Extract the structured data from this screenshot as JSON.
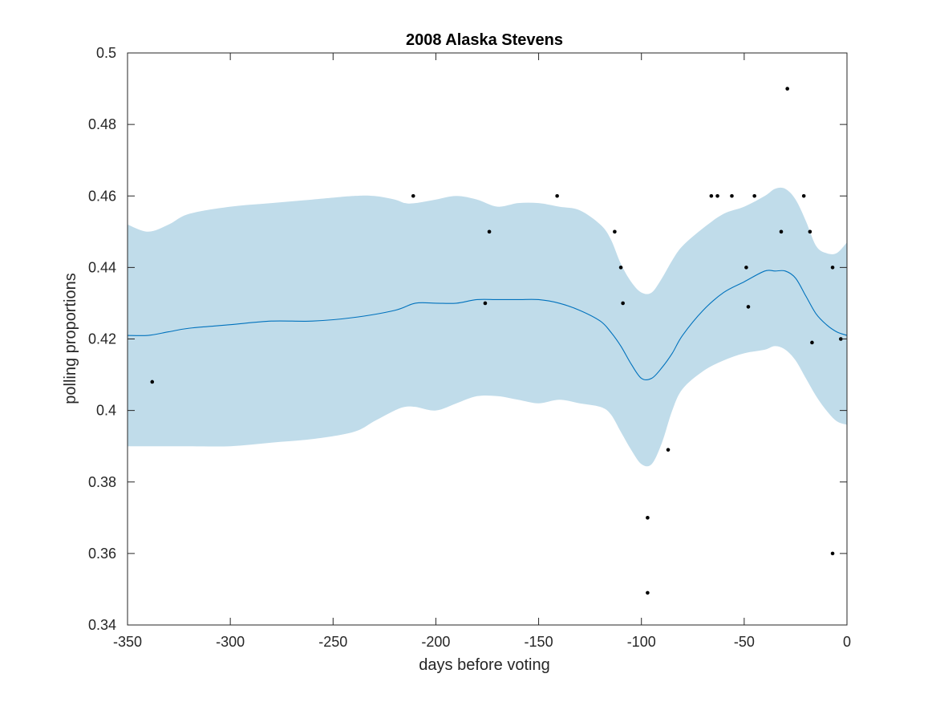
{
  "chart_data": {
    "type": "line",
    "title": "2008 Alaska Stevens",
    "xlabel": "days before voting",
    "ylabel": "polling proportions",
    "xlim": [
      -350,
      0
    ],
    "ylim": [
      0.34,
      0.5
    ],
    "xticks": [
      -350,
      -300,
      -250,
      -200,
      -150,
      -100,
      -50,
      0
    ],
    "xtick_labels": [
      "-350",
      "-300",
      "-250",
      "-200",
      "-150",
      "-100",
      "-50",
      "0"
    ],
    "yticks": [
      0.34,
      0.36,
      0.38,
      0.4,
      0.42,
      0.44,
      0.46,
      0.48,
      0.5
    ],
    "ytick_labels": [
      "0.34",
      "0.36",
      "0.38",
      "0.4",
      "0.42",
      "0.44",
      "0.46",
      "0.48",
      "0.5"
    ],
    "grid": false,
    "colors": {
      "band": "#c0dcea",
      "mean": "#0072bd",
      "points": "#000000",
      "axes": "#262626"
    },
    "series": [
      {
        "type": "band",
        "x": [
          -350,
          -340,
          -330,
          -320,
          -300,
          -280,
          -260,
          -240,
          -230,
          -220,
          -215,
          -210,
          -200,
          -190,
          -180,
          -170,
          -160,
          -150,
          -140,
          -130,
          -120,
          -115,
          -110,
          -105,
          -100,
          -95,
          -90,
          -85,
          -80,
          -70,
          -60,
          -50,
          -40,
          -35,
          -30,
          -25,
          -20,
          -15,
          -10,
          -5,
          0
        ],
        "upper": [
          0.452,
          0.45,
          0.452,
          0.455,
          0.457,
          0.458,
          0.459,
          0.46,
          0.46,
          0.459,
          0.458,
          0.458,
          0.459,
          0.46,
          0.459,
          0.457,
          0.458,
          0.458,
          0.457,
          0.456,
          0.452,
          0.448,
          0.441,
          0.436,
          0.433,
          0.433,
          0.437,
          0.442,
          0.446,
          0.451,
          0.455,
          0.457,
          0.46,
          0.462,
          0.462,
          0.459,
          0.453,
          0.446,
          0.444,
          0.444,
          0.447
        ],
        "lower": [
          0.39,
          0.39,
          0.39,
          0.39,
          0.39,
          0.391,
          0.392,
          0.394,
          0.397,
          0.4,
          0.401,
          0.401,
          0.4,
          0.402,
          0.404,
          0.404,
          0.403,
          0.402,
          0.403,
          0.402,
          0.401,
          0.399,
          0.394,
          0.389,
          0.385,
          0.385,
          0.391,
          0.4,
          0.406,
          0.411,
          0.414,
          0.416,
          0.417,
          0.418,
          0.417,
          0.414,
          0.409,
          0.404,
          0.4,
          0.397,
          0.396
        ]
      },
      {
        "type": "line",
        "x": [
          -350,
          -340,
          -330,
          -320,
          -300,
          -280,
          -260,
          -240,
          -220,
          -210,
          -200,
          -190,
          -180,
          -170,
          -160,
          -150,
          -140,
          -130,
          -120,
          -115,
          -110,
          -105,
          -100,
          -95,
          -90,
          -85,
          -80,
          -70,
          -60,
          -50,
          -40,
          -35,
          -30,
          -25,
          -20,
          -15,
          -10,
          -5,
          0
        ],
        "y": [
          0.421,
          0.421,
          0.422,
          0.423,
          0.424,
          0.425,
          0.425,
          0.426,
          0.428,
          0.43,
          0.43,
          0.43,
          0.431,
          0.431,
          0.431,
          0.431,
          0.43,
          0.428,
          0.425,
          0.422,
          0.418,
          0.413,
          0.409,
          0.409,
          0.412,
          0.416,
          0.421,
          0.428,
          0.433,
          0.436,
          0.439,
          0.439,
          0.439,
          0.437,
          0.432,
          0.427,
          0.424,
          0.422,
          0.421
        ]
      },
      {
        "type": "scatter",
        "x": [
          -338,
          -211,
          -176,
          -174,
          -141,
          -113,
          -110,
          -109,
          -97,
          -97,
          -87,
          -66,
          -63,
          -56,
          -49,
          -48,
          -45,
          -32,
          -29,
          -21,
          -18,
          -17,
          -7,
          -7,
          -3
        ],
        "y": [
          0.408,
          0.46,
          0.43,
          0.45,
          0.46,
          0.45,
          0.44,
          0.43,
          0.37,
          0.349,
          0.389,
          0.46,
          0.46,
          0.46,
          0.44,
          0.429,
          0.46,
          0.45,
          0.49,
          0.46,
          0.45,
          0.419,
          0.44,
          0.36,
          0.42
        ]
      }
    ]
  }
}
